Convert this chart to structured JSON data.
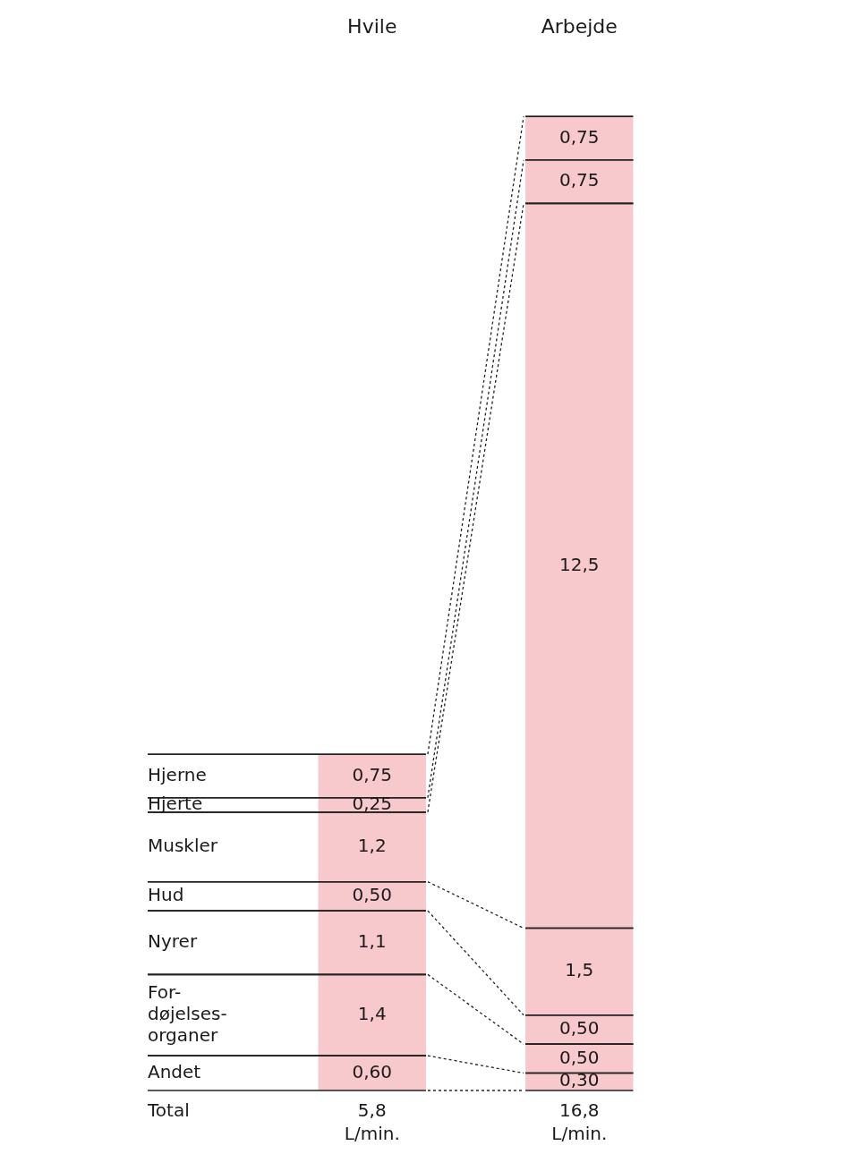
{
  "chart_data": {
    "type": "bar",
    "stacked": true,
    "categories": [
      "Hvile",
      "Arbejde"
    ],
    "tick_labels": "x",
    "grid": false,
    "legend": false,
    "series": [
      {
        "name": "Andet",
        "color": "#f7c9cc",
        "values": [
          0.6,
          0.3
        ],
        "value_labels": [
          "0,60",
          "0,30"
        ]
      },
      {
        "name": "For-\ndøjelses-\norganer",
        "color": "#f7c9cc",
        "values": [
          1.4,
          0.5
        ],
        "value_labels": [
          "1,4",
          "0,50"
        ]
      },
      {
        "name": "Nyrer",
        "color": "#f7c9cc",
        "values": [
          1.1,
          0.5
        ],
        "value_labels": [
          "1,1",
          "0,50"
        ]
      },
      {
        "name": "Hud",
        "color": "#f7c9cc",
        "values": [
          0.5,
          1.5
        ],
        "value_labels": [
          "0,50",
          "1,5"
        ]
      },
      {
        "name": "Muskler",
        "color": "#f7c9cc",
        "values": [
          1.2,
          12.5
        ],
        "value_labels": [
          "1,2",
          "12,5"
        ]
      },
      {
        "name": "Hjerte",
        "color": "#f7c9cc",
        "values": [
          0.25,
          0.75
        ],
        "value_labels": [
          "0,25",
          "0,75"
        ]
      },
      {
        "name": "Hjerne",
        "color": "#f7c9cc",
        "values": [
          0.75,
          0.75
        ],
        "value_labels": [
          "0,75",
          "0,75"
        ]
      }
    ],
    "totals": [
      "5,8 L/min.",
      "16,8 L/min."
    ],
    "annotations": [
      "Total"
    ]
  }
}
